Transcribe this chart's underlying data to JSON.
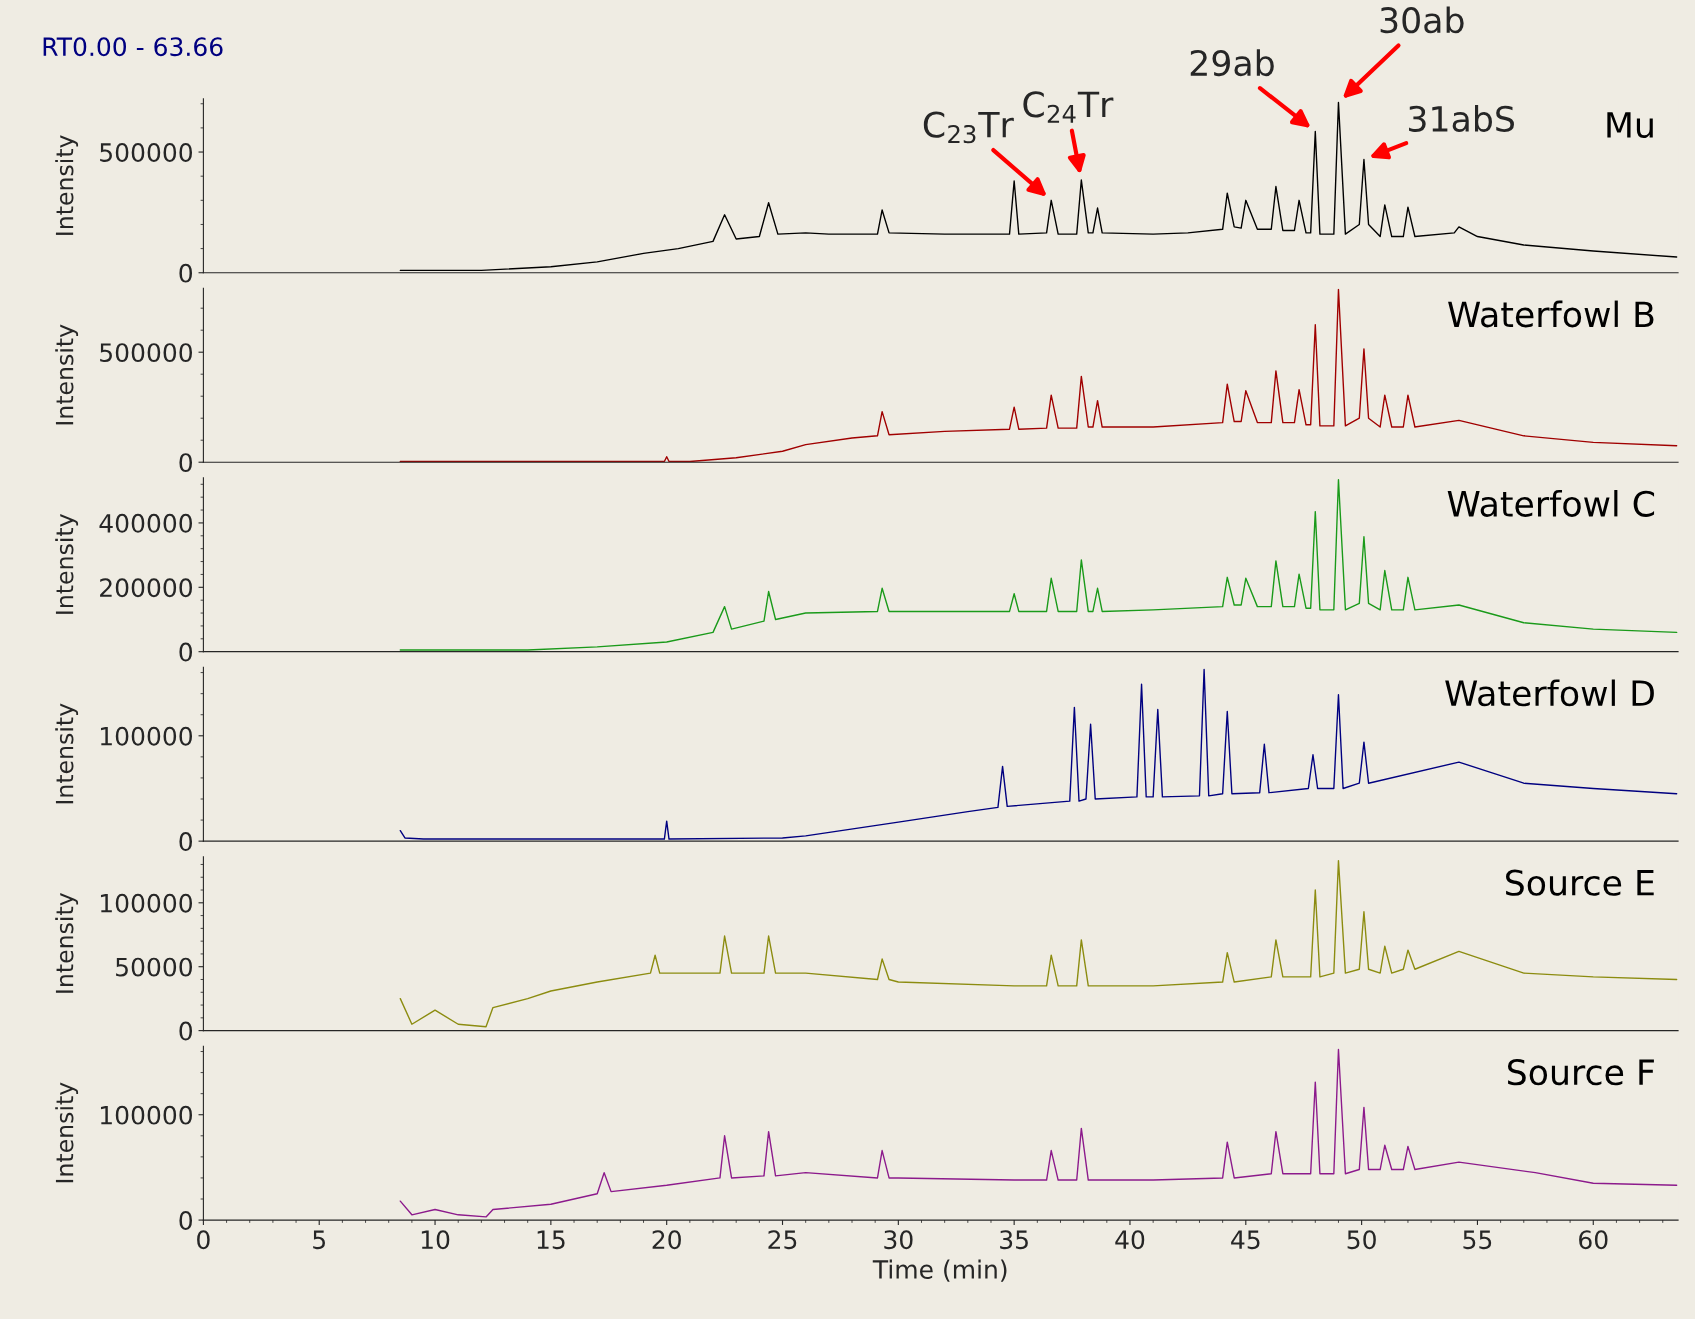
{
  "chart_data": [
    {
      "type": "line",
      "title": "RT0.00 - 63.66",
      "ylabel": "Intensity",
      "xlim": [
        0,
        63.66
      ],
      "ylim": [
        0,
        720000
      ],
      "yticks": [
        0,
        500000
      ],
      "tick_labels": "y",
      "annotations": [
        {
          "text": "C$_{23}$Tr",
          "x": 36.6,
          "y": 300000
        },
        {
          "text": "C$_{24}$Tr",
          "x": 37.9,
          "y": 384000
        },
        {
          "text": "29ab",
          "x": 48.0,
          "y": 585000
        },
        {
          "text": "30ab",
          "x": 49.0,
          "y": 705000
        },
        {
          "text": "31abS",
          "x": 50.1,
          "y": 469000
        }
      ],
      "series": [
        {
          "name": "Mu",
          "color": "#000000",
          "x": [
            8.5,
            12,
            15,
            17,
            19,
            20.5,
            22,
            22.5,
            23,
            24,
            24.4,
            24.8,
            26,
            27,
            29.1,
            29.3,
            29.6,
            32,
            34.8,
            35.0,
            35.2,
            36.4,
            36.6,
            36.9,
            37.7,
            37.9,
            38.2,
            38.4,
            38.6,
            38.8,
            41,
            42.5,
            44,
            44.2,
            44.5,
            44.8,
            45.0,
            45.5,
            46.1,
            46.3,
            46.6,
            47.1,
            47.3,
            47.6,
            47.8,
            48.0,
            48.2,
            48.8,
            49.0,
            49.3,
            49.9,
            50.1,
            50.3,
            50.8,
            51.0,
            51.3,
            51.8,
            52.0,
            52.3,
            54.0,
            54.2,
            55,
            57,
            60,
            63.6
          ],
          "values": [
            10000,
            10000,
            25000,
            45000,
            80000,
            100000,
            130000,
            240000,
            140000,
            150000,
            290000,
            160000,
            165000,
            160000,
            160000,
            260000,
            165000,
            160000,
            160000,
            380000,
            160000,
            165000,
            300000,
            160000,
            160000,
            384000,
            165000,
            165000,
            268000,
            165000,
            160000,
            165000,
            180000,
            330000,
            190000,
            185000,
            300000,
            180000,
            180000,
            357000,
            175000,
            175000,
            300000,
            165000,
            165000,
            585000,
            160000,
            160000,
            705000,
            160000,
            200000,
            469000,
            200000,
            150000,
            281000,
            150000,
            150000,
            272000,
            150000,
            165000,
            190000,
            150000,
            115000,
            90000,
            65000
          ]
        }
      ]
    },
    {
      "type": "line",
      "ylabel": "Intensity",
      "xlim": [
        0,
        63.66
      ],
      "ylim": [
        0,
        790000
      ],
      "yticks": [
        0,
        500000
      ],
      "tick_labels": "y",
      "series": [
        {
          "name": "Waterfowl B",
          "color": "#a00000",
          "x": [
            8.5,
            19.9,
            20.0,
            20.1,
            21,
            23,
            25,
            26,
            28,
            29.1,
            29.3,
            29.6,
            32,
            34.8,
            35.0,
            35.2,
            36.4,
            36.6,
            36.9,
            37.7,
            37.9,
            38.2,
            38.4,
            38.6,
            38.8,
            41,
            44,
            44.2,
            44.5,
            44.8,
            45.0,
            45.5,
            46.1,
            46.3,
            46.6,
            47.1,
            47.3,
            47.6,
            47.8,
            48.0,
            48.2,
            48.8,
            49.0,
            49.3,
            49.9,
            50.1,
            50.3,
            50.8,
            51.0,
            51.3,
            51.8,
            52.0,
            52.3,
            54.2,
            57,
            60,
            63.6
          ],
          "values": [
            3000,
            3000,
            25000,
            3000,
            3000,
            20000,
            50000,
            80000,
            110000,
            120000,
            230000,
            125000,
            140000,
            150000,
            250000,
            150000,
            155000,
            305000,
            155000,
            155000,
            390000,
            160000,
            160000,
            280000,
            160000,
            160000,
            180000,
            355000,
            185000,
            185000,
            325000,
            180000,
            180000,
            415000,
            180000,
            180000,
            330000,
            170000,
            170000,
            625000,
            165000,
            165000,
            785000,
            165000,
            200000,
            515000,
            200000,
            160000,
            305000,
            160000,
            160000,
            305000,
            160000,
            190000,
            120000,
            90000,
            75000
          ]
        }
      ]
    },
    {
      "type": "line",
      "ylabel": "Intensity",
      "xlim": [
        0,
        63.66
      ],
      "ylim": [
        0,
        540000
      ],
      "yticks": [
        0,
        200000,
        400000
      ],
      "tick_labels": "y",
      "series": [
        {
          "name": "Waterfowl C",
          "color": "#1a9a1a",
          "x": [
            8.5,
            14,
            17,
            20,
            22,
            22.5,
            22.8,
            24.2,
            24.4,
            24.7,
            26,
            29.1,
            29.3,
            29.6,
            34.8,
            35.0,
            35.2,
            36.4,
            36.6,
            36.9,
            37.7,
            37.9,
            38.2,
            38.4,
            38.6,
            38.8,
            41,
            44,
            44.2,
            44.5,
            44.8,
            45.0,
            45.5,
            46.1,
            46.3,
            46.6,
            47.1,
            47.3,
            47.6,
            47.8,
            48.0,
            48.2,
            48.8,
            49.0,
            49.3,
            49.9,
            50.1,
            50.3,
            50.8,
            51.0,
            51.3,
            51.8,
            52.0,
            52.3,
            54.2,
            57,
            60,
            63.6
          ],
          "values": [
            5000,
            5000,
            15000,
            30000,
            60000,
            140000,
            70000,
            95000,
            187000,
            100000,
            120000,
            125000,
            197000,
            125000,
            125000,
            180000,
            125000,
            125000,
            228000,
            125000,
            125000,
            285000,
            125000,
            125000,
            197000,
            125000,
            130000,
            140000,
            231000,
            145000,
            145000,
            228000,
            140000,
            140000,
            282000,
            140000,
            140000,
            241000,
            135000,
            135000,
            435000,
            130000,
            130000,
            534000,
            130000,
            150000,
            357000,
            150000,
            130000,
            252000,
            130000,
            130000,
            231000,
            130000,
            145000,
            90000,
            70000,
            60000
          ]
        }
      ]
    },
    {
      "type": "line",
      "ylabel": "Intensity",
      "xlim": [
        0,
        63.66
      ],
      "ylim": [
        0,
        165000
      ],
      "yticks": [
        0,
        100000
      ],
      "tick_labels": "y",
      "series": [
        {
          "name": "Waterfowl D",
          "color": "#000080",
          "x": [
            8.5,
            8.7,
            9.5,
            19.9,
            20.0,
            20.1,
            25,
            26,
            30,
            33,
            34.3,
            34.5,
            34.7,
            37.4,
            37.6,
            37.8,
            38.1,
            38.3,
            38.5,
            40.3,
            40.5,
            40.7,
            41.0,
            41.2,
            41.4,
            43.0,
            43.2,
            43.4,
            44.0,
            44.2,
            44.4,
            45.6,
            45.8,
            46.0,
            47.7,
            47.9,
            48.1,
            48.8,
            49.0,
            49.2,
            49.9,
            50.1,
            50.3,
            54.2,
            57,
            60,
            63.6
          ],
          "values": [
            10000,
            3000,
            2000,
            2000,
            19000,
            2000,
            3000,
            5000,
            18000,
            28000,
            32000,
            71000,
            33000,
            38000,
            127000,
            38000,
            40000,
            111000,
            40000,
            42000,
            149000,
            42000,
            42000,
            125000,
            42000,
            43000,
            163000,
            43000,
            45000,
            123000,
            45000,
            46000,
            92000,
            46000,
            50000,
            82000,
            50000,
            50000,
            139000,
            50000,
            55000,
            94000,
            55000,
            75000,
            55000,
            50000,
            45000
          ]
        }
      ]
    },
    {
      "type": "line",
      "ylabel": "Intensity",
      "xlim": [
        0,
        63.66
      ],
      "ylim": [
        0,
        136000
      ],
      "yticks": [
        0,
        50000,
        100000
      ],
      "tick_labels": "y",
      "series": [
        {
          "name": "Source E",
          "color": "#8c8c10",
          "x": [
            8.5,
            9,
            10.0,
            11,
            12.2,
            12.5,
            14,
            15,
            17,
            19.3,
            19.5,
            19.7,
            20,
            22.3,
            22.5,
            22.8,
            24.2,
            24.4,
            24.7,
            26,
            29.1,
            29.3,
            29.6,
            30,
            35,
            36.4,
            36.6,
            36.9,
            37.7,
            37.9,
            38.2,
            41,
            44,
            44.2,
            44.5,
            46.1,
            46.3,
            46.6,
            47.8,
            48.0,
            48.2,
            48.8,
            49.0,
            49.3,
            49.9,
            50.1,
            50.3,
            50.8,
            51.0,
            51.3,
            51.8,
            52.0,
            52.3,
            54.2,
            57,
            60,
            63.6
          ],
          "values": [
            25000,
            5000,
            16000,
            5000,
            3000,
            18000,
            25000,
            31000,
            38000,
            45000,
            59000,
            45000,
            45000,
            45000,
            74000,
            45000,
            45000,
            74000,
            45000,
            45000,
            40000,
            56000,
            40000,
            38000,
            35000,
            35000,
            59000,
            35000,
            35000,
            71000,
            35000,
            35000,
            38000,
            61000,
            38000,
            42000,
            71000,
            42000,
            42000,
            110000,
            42000,
            45000,
            133000,
            45000,
            48000,
            93000,
            48000,
            45000,
            66000,
            45000,
            48000,
            63000,
            48000,
            62000,
            45000,
            42000,
            40000
          ]
        }
      ]
    },
    {
      "type": "line",
      "ylabel": "Intensity",
      "xlabel": "Time (min)",
      "xlim": [
        0,
        63.66
      ],
      "xticks": [
        0,
        5,
        10,
        15,
        20,
        25,
        30,
        35,
        40,
        45,
        50,
        55,
        60
      ],
      "ylim": [
        0,
        165000
      ],
      "yticks": [
        0,
        100000
      ],
      "series": [
        {
          "name": "Source F",
          "color": "#8c1a8c",
          "x": [
            8.5,
            9,
            10.0,
            11,
            12.2,
            12.5,
            15,
            17,
            17.3,
            17.6,
            20,
            22.3,
            22.5,
            22.8,
            24.2,
            24.4,
            24.7,
            26,
            29.1,
            29.3,
            29.6,
            30,
            35,
            36.4,
            36.6,
            36.9,
            37.7,
            37.9,
            38.2,
            41,
            44,
            44.2,
            44.5,
            46.1,
            46.3,
            46.6,
            47.8,
            48.0,
            48.2,
            48.8,
            49.0,
            49.3,
            49.9,
            50.1,
            50.3,
            50.8,
            51.0,
            51.3,
            51.8,
            52.0,
            52.3,
            54.2,
            57.5,
            60,
            63.6
          ],
          "values": [
            18000,
            5000,
            10000,
            5000,
            3000,
            10000,
            15000,
            25000,
            45000,
            27000,
            33000,
            40000,
            80000,
            40000,
            42000,
            84000,
            42000,
            45000,
            40000,
            66000,
            40000,
            40000,
            38000,
            38000,
            66000,
            38000,
            38000,
            87000,
            38000,
            38000,
            40000,
            74000,
            40000,
            44000,
            84000,
            44000,
            44000,
            131000,
            44000,
            44000,
            162000,
            44000,
            48000,
            107000,
            48000,
            48000,
            71000,
            48000,
            48000,
            70000,
            48000,
            55000,
            45000,
            35000,
            33000
          ]
        }
      ]
    }
  ]
}
